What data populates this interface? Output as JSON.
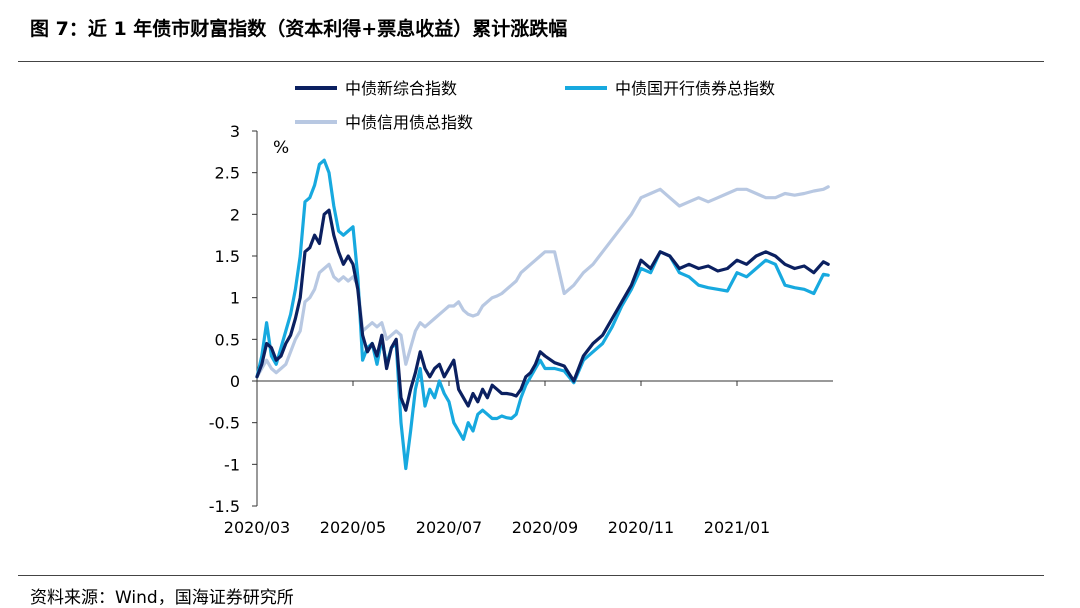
{
  "title": "图 7：近 1 年债市财富指数（资本利得+票息收益）累计涨跌幅",
  "source": "资料来源：Wind，国海证券研究所",
  "colors": {
    "series_1": "#0b2060",
    "series_2": "#17a9df",
    "series_3": "#b8c8e2",
    "axis": "#333333",
    "rule": "#444444"
  },
  "chart_data": {
    "type": "line",
    "title": "",
    "xlabel": "",
    "ylabel": "%",
    "ylim": [
      -1.5,
      3
    ],
    "yticks": [
      3,
      2.5,
      2,
      1.5,
      1,
      0.5,
      0,
      -0.5,
      -1,
      -1.5
    ],
    "ytick_labels": [
      "3",
      "2.5",
      "2",
      "1.5",
      "1",
      "0.5",
      "0",
      "-0.5",
      "-1",
      "-1.5"
    ],
    "xlim": [
      0,
      12
    ],
    "xticks": [
      0,
      2,
      4,
      6,
      8,
      10
    ],
    "xtick_labels": [
      "2020/03",
      "2020/05",
      "2020/07",
      "2020/09",
      "2020/11",
      "2021/01"
    ],
    "series": [
      {
        "name": "中债新综合指数",
        "x": [
          0,
          0.1,
          0.2,
          0.3,
          0.4,
          0.5,
          0.6,
          0.7,
          0.8,
          0.9,
          1.0,
          1.1,
          1.2,
          1.3,
          1.4,
          1.5,
          1.6,
          1.7,
          1.8,
          1.9,
          2.0,
          2.1,
          2.2,
          2.3,
          2.4,
          2.5,
          2.6,
          2.7,
          2.8,
          2.9,
          3.0,
          3.1,
          3.2,
          3.3,
          3.4,
          3.5,
          3.6,
          3.7,
          3.8,
          3.9,
          4.0,
          4.1,
          4.2,
          4.3,
          4.4,
          4.5,
          4.6,
          4.7,
          4.8,
          4.9,
          5.0,
          5.1,
          5.2,
          5.3,
          5.4,
          5.5,
          5.6,
          5.7,
          5.8,
          5.9,
          6.0,
          6.2,
          6.4,
          6.6,
          6.8,
          7.0,
          7.2,
          7.4,
          7.6,
          7.8,
          8.0,
          8.2,
          8.4,
          8.6,
          8.8,
          9.0,
          9.2,
          9.4,
          9.6,
          9.8,
          10.0,
          10.2,
          10.4,
          10.6,
          10.8,
          11.0,
          11.2,
          11.4,
          11.6,
          11.8,
          11.9
        ],
        "values": [
          0.05,
          0.2,
          0.45,
          0.4,
          0.25,
          0.3,
          0.45,
          0.55,
          0.75,
          1.0,
          1.55,
          1.6,
          1.75,
          1.65,
          2.0,
          2.05,
          1.75,
          1.55,
          1.4,
          1.5,
          1.4,
          1.1,
          0.55,
          0.35,
          0.45,
          0.3,
          0.55,
          0.15,
          0.4,
          0.5,
          -0.2,
          -0.35,
          -0.1,
          0.1,
          0.35,
          0.15,
          0.05,
          0.15,
          0.2,
          0.05,
          0.15,
          0.25,
          -0.1,
          -0.2,
          -0.3,
          -0.15,
          -0.25,
          -0.1,
          -0.2,
          -0.05,
          -0.1,
          -0.15,
          -0.15,
          -0.16,
          -0.18,
          -0.1,
          0.05,
          0.1,
          0.2,
          0.35,
          0.3,
          0.22,
          0.18,
          0.0,
          0.3,
          0.45,
          0.55,
          0.75,
          0.95,
          1.15,
          1.45,
          1.35,
          1.55,
          1.5,
          1.35,
          1.4,
          1.35,
          1.38,
          1.32,
          1.35,
          1.45,
          1.4,
          1.5,
          1.55,
          1.5,
          1.4,
          1.35,
          1.38,
          1.3,
          1.43,
          1.4
        ]
      },
      {
        "name": "中债国开行债券总指数",
        "x": [
          0,
          0.1,
          0.2,
          0.3,
          0.4,
          0.5,
          0.6,
          0.7,
          0.8,
          0.9,
          1.0,
          1.1,
          1.2,
          1.3,
          1.4,
          1.5,
          1.6,
          1.7,
          1.8,
          1.9,
          2.0,
          2.1,
          2.2,
          2.3,
          2.4,
          2.5,
          2.6,
          2.7,
          2.8,
          2.9,
          3.0,
          3.1,
          3.2,
          3.3,
          3.4,
          3.5,
          3.6,
          3.7,
          3.8,
          3.9,
          4.0,
          4.1,
          4.2,
          4.3,
          4.4,
          4.5,
          4.6,
          4.7,
          4.8,
          4.9,
          5.0,
          5.1,
          5.2,
          5.3,
          5.4,
          5.5,
          5.6,
          5.7,
          5.8,
          5.9,
          6.0,
          6.2,
          6.4,
          6.6,
          6.8,
          7.0,
          7.2,
          7.4,
          7.6,
          7.8,
          8.0,
          8.2,
          8.4,
          8.6,
          8.8,
          9.0,
          9.2,
          9.4,
          9.6,
          9.8,
          10.0,
          10.2,
          10.4,
          10.6,
          10.8,
          11.0,
          11.2,
          11.4,
          11.6,
          11.8,
          11.9
        ],
        "values": [
          0.05,
          0.3,
          0.7,
          0.3,
          0.2,
          0.4,
          0.6,
          0.8,
          1.1,
          1.5,
          2.15,
          2.2,
          2.35,
          2.6,
          2.65,
          2.5,
          2.1,
          1.8,
          1.75,
          1.8,
          1.85,
          1.25,
          0.25,
          0.4,
          0.45,
          0.2,
          0.5,
          0.2,
          0.4,
          0.45,
          -0.5,
          -1.05,
          -0.6,
          -0.1,
          0.15,
          -0.3,
          -0.1,
          -0.2,
          0.0,
          -0.15,
          -0.25,
          -0.5,
          -0.6,
          -0.7,
          -0.5,
          -0.6,
          -0.4,
          -0.35,
          -0.4,
          -0.45,
          -0.45,
          -0.42,
          -0.44,
          -0.45,
          -0.4,
          -0.2,
          -0.05,
          0.05,
          0.15,
          0.25,
          0.15,
          0.15,
          0.12,
          -0.02,
          0.25,
          0.35,
          0.45,
          0.65,
          0.9,
          1.1,
          1.35,
          1.3,
          1.55,
          1.5,
          1.3,
          1.25,
          1.15,
          1.12,
          1.1,
          1.08,
          1.3,
          1.25,
          1.35,
          1.45,
          1.4,
          1.15,
          1.12,
          1.1,
          1.05,
          1.28,
          1.27
        ]
      },
      {
        "name": "中债信用债总指数",
        "x": [
          0,
          0.1,
          0.2,
          0.3,
          0.4,
          0.5,
          0.6,
          0.7,
          0.8,
          0.9,
          1.0,
          1.1,
          1.2,
          1.3,
          1.4,
          1.5,
          1.6,
          1.7,
          1.8,
          1.9,
          2.0,
          2.1,
          2.2,
          2.3,
          2.4,
          2.5,
          2.6,
          2.7,
          2.8,
          2.9,
          3.0,
          3.1,
          3.2,
          3.3,
          3.4,
          3.5,
          3.6,
          3.7,
          3.8,
          3.9,
          4.0,
          4.1,
          4.2,
          4.3,
          4.4,
          4.5,
          4.6,
          4.7,
          4.8,
          4.9,
          5.0,
          5.1,
          5.2,
          5.3,
          5.4,
          5.5,
          5.6,
          5.7,
          5.8,
          5.9,
          6.0,
          6.2,
          6.4,
          6.6,
          6.8,
          7.0,
          7.2,
          7.4,
          7.6,
          7.8,
          8.0,
          8.2,
          8.4,
          8.6,
          8.8,
          9.0,
          9.2,
          9.4,
          9.6,
          9.8,
          10.0,
          10.2,
          10.4,
          10.6,
          10.8,
          11.0,
          11.2,
          11.4,
          11.6,
          11.8,
          11.9
        ],
        "values": [
          0.05,
          0.15,
          0.25,
          0.15,
          0.1,
          0.15,
          0.2,
          0.35,
          0.5,
          0.6,
          0.95,
          1.0,
          1.1,
          1.3,
          1.35,
          1.4,
          1.25,
          1.2,
          1.25,
          1.2,
          1.25,
          1.15,
          0.6,
          0.65,
          0.7,
          0.65,
          0.7,
          0.5,
          0.55,
          0.6,
          0.55,
          0.2,
          0.4,
          0.6,
          0.7,
          0.65,
          0.7,
          0.75,
          0.8,
          0.85,
          0.9,
          0.9,
          0.95,
          0.85,
          0.8,
          0.78,
          0.8,
          0.9,
          0.95,
          1.0,
          1.02,
          1.05,
          1.1,
          1.15,
          1.2,
          1.3,
          1.35,
          1.4,
          1.45,
          1.5,
          1.55,
          1.55,
          1.05,
          1.15,
          1.3,
          1.4,
          1.55,
          1.7,
          1.85,
          2.0,
          2.2,
          2.25,
          2.3,
          2.2,
          2.1,
          2.15,
          2.2,
          2.15,
          2.2,
          2.25,
          2.3,
          2.3,
          2.25,
          2.2,
          2.2,
          2.25,
          2.23,
          2.25,
          2.28,
          2.3,
          2.33
        ]
      }
    ]
  }
}
